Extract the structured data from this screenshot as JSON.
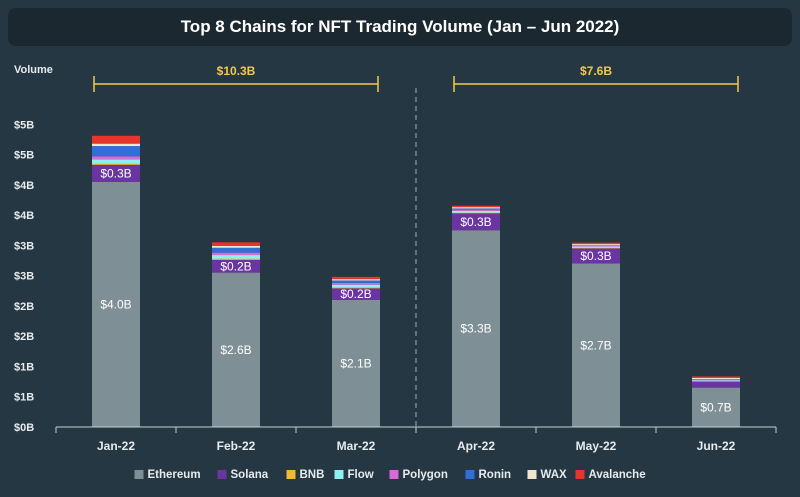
{
  "chart_data": {
    "type": "bar",
    "stacked": true,
    "title": "Top 8 Chains for NFT Trading Volume (Jan – Jun 2022)",
    "ylabel": "Volume",
    "ylim": [
      0,
      5.5
    ],
    "y_ticks": [
      {
        "value": 0,
        "label": "$0B"
      },
      {
        "value": 0.5,
        "label": "$1B"
      },
      {
        "value": 1.0,
        "label": "$1B"
      },
      {
        "value": 1.5,
        "label": "$2B"
      },
      {
        "value": 2.0,
        "label": "$2B"
      },
      {
        "value": 2.5,
        "label": "$3B"
      },
      {
        "value": 3.0,
        "label": "$3B"
      },
      {
        "value": 3.5,
        "label": "$4B"
      },
      {
        "value": 4.0,
        "label": "$4B"
      },
      {
        "value": 4.5,
        "label": "$5B"
      },
      {
        "value": 5.0,
        "label": "$5B"
      }
    ],
    "categories": [
      "Jan-22",
      "Feb-22",
      "Mar-22",
      "Apr-22",
      "May-22",
      "Jun-22"
    ],
    "series": [
      {
        "name": "Ethereum",
        "color": "#7f8f96",
        "values": [
          4.05,
          2.55,
          2.1,
          3.25,
          2.7,
          0.65
        ],
        "labels": [
          "$4.0B",
          "$2.6B",
          "$2.1B",
          "$3.3B",
          "$2.7B",
          "$0.7B"
        ]
      },
      {
        "name": "Solana",
        "color": "#6a35a0",
        "values": [
          0.28,
          0.21,
          0.19,
          0.28,
          0.25,
          0.1
        ],
        "labels": [
          "$0.3B",
          "$0.2B",
          "$0.2B",
          "$0.3B",
          "$0.3B",
          ""
        ]
      },
      {
        "name": "BNB",
        "color": "#f3ba2f",
        "values": [
          0.02,
          0.02,
          0.02,
          0.01,
          0.01,
          0.01
        ]
      },
      {
        "name": "Flow",
        "color": "#8ef0f0",
        "values": [
          0.07,
          0.06,
          0.04,
          0.03,
          0.02,
          0.01
        ]
      },
      {
        "name": "Polygon",
        "color": "#d86ad8",
        "values": [
          0.05,
          0.04,
          0.03,
          0.02,
          0.01,
          0.01
        ]
      },
      {
        "name": "Ronin",
        "color": "#2f6fd6",
        "values": [
          0.17,
          0.08,
          0.04,
          0.02,
          0.01,
          0.01
        ]
      },
      {
        "name": "WAX",
        "color": "#f3e6cc",
        "values": [
          0.04,
          0.03,
          0.02,
          0.02,
          0.02,
          0.02
        ]
      },
      {
        "name": "Avalanche",
        "color": "#e8352b",
        "values": [
          0.13,
          0.06,
          0.04,
          0.02,
          0.01,
          0.01
        ]
      }
    ],
    "brackets": [
      {
        "label": "$10.3B",
        "from": 0,
        "to": 2
      },
      {
        "label": "$7.6B",
        "from": 3,
        "to": 5
      }
    ],
    "separator_after_index": 2,
    "bracket_color": "#f2c94c",
    "grid": false,
    "legend_position": "bottom"
  }
}
